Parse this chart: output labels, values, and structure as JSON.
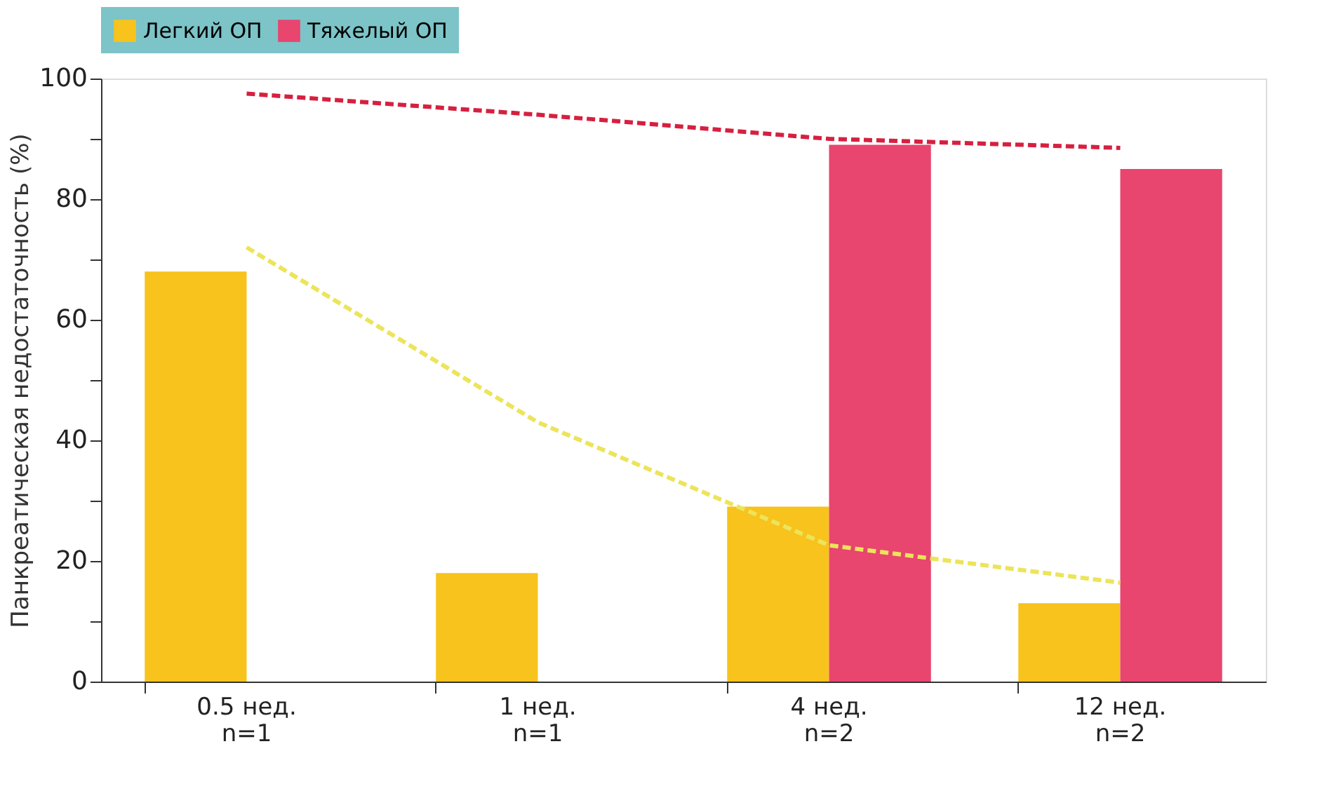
{
  "chart_data": {
    "type": "bar",
    "ylabel": "Панкреатическая недостаточность (%)",
    "categories": [
      "0.5 нед.\nn=1",
      "1 нед.\nn=1",
      "4 нед.\nn=2",
      "12 нед.\nn=2"
    ],
    "series": [
      {
        "name": "Легкий ОП",
        "color": "#f7c31c",
        "values": [
          68,
          18,
          29,
          13
        ]
      },
      {
        "name": "Тяжелый ОП",
        "color": "#e8456f",
        "values": [
          null,
          null,
          89,
          85
        ]
      },
      {
        "type": "line",
        "color": "#d62040",
        "line_style": "dashed",
        "values": [
          97.5,
          94,
          90,
          88.5
        ]
      },
      {
        "type": "line",
        "color": "#ece45a",
        "line_style": "dashed",
        "values": [
          72,
          43,
          22.6,
          16.4
        ]
      }
    ],
    "ylim": [
      0,
      100
    ],
    "yticks": [
      0,
      {
        "value": 10,
        "label": null
      },
      20,
      {
        "value": 30,
        "label": null
      },
      40,
      {
        "value": 50,
        "label": null
      },
      60,
      {
        "value": 70,
        "label": null
      },
      80,
      {
        "value": 90,
        "label": null
      },
      100
    ],
    "grid": false,
    "legend": "top",
    "marker": "none"
  }
}
